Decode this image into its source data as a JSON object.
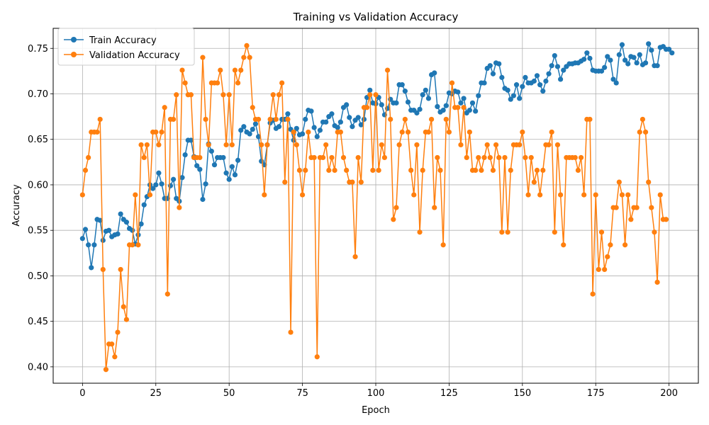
{
  "chart_data": {
    "type": "line",
    "title": "Training vs Validation Accuracy",
    "xlabel": "Epoch",
    "ylabel": "Accuracy",
    "xlim": [
      -10,
      210
    ],
    "ylim": [
      0.382,
      0.772
    ],
    "xticks": [
      0,
      25,
      50,
      75,
      100,
      125,
      150,
      175,
      200
    ],
    "yticks": [
      0.4,
      0.45,
      0.5,
      0.55,
      0.6,
      0.65,
      0.7,
      0.75
    ],
    "ytick_labels": [
      "0.40",
      "0.45",
      "0.50",
      "0.55",
      "0.60",
      "0.65",
      "0.70",
      "0.75"
    ],
    "grid": true,
    "legend_position": "top-left",
    "series": [
      {
        "name": "Train Accuracy",
        "color": "#1f77b4",
        "marker": "circle",
        "values": [
          0.541,
          0.551,
          0.534,
          0.509,
          0.534,
          0.562,
          0.561,
          0.539,
          0.549,
          0.55,
          0.543,
          0.545,
          0.546,
          0.568,
          0.562,
          0.559,
          0.552,
          0.55,
          0.535,
          0.545,
          0.557,
          0.578,
          0.587,
          0.6,
          0.596,
          0.6,
          0.613,
          0.601,
          0.585,
          0.585,
          0.599,
          0.606,
          0.585,
          0.582,
          0.608,
          0.633,
          0.649,
          0.649,
          0.631,
          0.621,
          0.617,
          0.584,
          0.601,
          0.645,
          0.637,
          0.622,
          0.63,
          0.63,
          0.63,
          0.613,
          0.606,
          0.62,
          0.611,
          0.627,
          0.66,
          0.664,
          0.658,
          0.656,
          0.661,
          0.667,
          0.653,
          0.626,
          0.622,
          0.644,
          0.668,
          0.671,
          0.662,
          0.664,
          0.672,
          0.672,
          0.678,
          0.661,
          0.649,
          0.662,
          0.655,
          0.656,
          0.672,
          0.682,
          0.681,
          0.663,
          0.653,
          0.66,
          0.669,
          0.669,
          0.675,
          0.678,
          0.665,
          0.663,
          0.669,
          0.685,
          0.688,
          0.674,
          0.664,
          0.671,
          0.674,
          0.666,
          0.672,
          0.696,
          0.704,
          0.69,
          0.689,
          0.696,
          0.688,
          0.677,
          0.684,
          0.694,
          0.69,
          0.69,
          0.71,
          0.71,
          0.703,
          0.691,
          0.682,
          0.682,
          0.679,
          0.683,
          0.699,
          0.704,
          0.695,
          0.721,
          0.723,
          0.686,
          0.68,
          0.682,
          0.687,
          0.701,
          0.7,
          0.703,
          0.702,
          0.69,
          0.695,
          0.679,
          0.682,
          0.69,
          0.681,
          0.698,
          0.712,
          0.712,
          0.728,
          0.731,
          0.722,
          0.734,
          0.733,
          0.718,
          0.706,
          0.704,
          0.694,
          0.698,
          0.71,
          0.695,
          0.708,
          0.718,
          0.712,
          0.712,
          0.714,
          0.72,
          0.71,
          0.703,
          0.714,
          0.722,
          0.731,
          0.742,
          0.73,
          0.716,
          0.726,
          0.73,
          0.733,
          0.733,
          0.734,
          0.734,
          0.736,
          0.738,
          0.745,
          0.739,
          0.726,
          0.725,
          0.725,
          0.725,
          0.729,
          0.741,
          0.737,
          0.716,
          0.712,
          0.743,
          0.754,
          0.737,
          0.733,
          0.741,
          0.74,
          0.734,
          0.743,
          0.732,
          0.734,
          0.755,
          0.748,
          0.731,
          0.731,
          0.751,
          0.752,
          0.749,
          0.749,
          0.745
        ]
      },
      {
        "name": "Validation Accuracy",
        "color": "#ff7f0e",
        "marker": "circle",
        "values": [
          0.589,
          0.616,
          0.63,
          0.658,
          0.658,
          0.658,
          0.672,
          0.507,
          0.397,
          0.425,
          0.425,
          0.411,
          0.438,
          0.507,
          0.466,
          0.452,
          0.534,
          0.534,
          0.589,
          0.534,
          0.644,
          0.63,
          0.644,
          0.589,
          0.658,
          0.658,
          0.644,
          0.658,
          0.685,
          0.48,
          0.672,
          0.672,
          0.699,
          0.575,
          0.726,
          0.712,
          0.699,
          0.699,
          0.63,
          0.63,
          0.63,
          0.74,
          0.672,
          0.644,
          0.712,
          0.712,
          0.712,
          0.726,
          0.699,
          0.644,
          0.699,
          0.644,
          0.726,
          0.712,
          0.726,
          0.74,
          0.753,
          0.74,
          0.685,
          0.672,
          0.672,
          0.644,
          0.589,
          0.644,
          0.672,
          0.699,
          0.672,
          0.699,
          0.712,
          0.603,
          0.672,
          0.438,
          0.658,
          0.644,
          0.616,
          0.589,
          0.616,
          0.658,
          0.63,
          0.63,
          0.411,
          0.63,
          0.63,
          0.644,
          0.616,
          0.63,
          0.616,
          0.658,
          0.658,
          0.63,
          0.616,
          0.603,
          0.603,
          0.521,
          0.63,
          0.603,
          0.685,
          0.685,
          0.699,
          0.616,
          0.699,
          0.616,
          0.644,
          0.63,
          0.726,
          0.672,
          0.562,
          0.575,
          0.644,
          0.658,
          0.672,
          0.658,
          0.616,
          0.589,
          0.644,
          0.548,
          0.616,
          0.658,
          0.658,
          0.672,
          0.575,
          0.63,
          0.616,
          0.534,
          0.672,
          0.658,
          0.712,
          0.685,
          0.685,
          0.644,
          0.685,
          0.63,
          0.658,
          0.616,
          0.616,
          0.63,
          0.616,
          0.63,
          0.644,
          0.63,
          0.616,
          0.644,
          0.63,
          0.548,
          0.63,
          0.548,
          0.616,
          0.644,
          0.644,
          0.644,
          0.658,
          0.63,
          0.589,
          0.63,
          0.603,
          0.616,
          0.589,
          0.616,
          0.644,
          0.644,
          0.658,
          0.548,
          0.644,
          0.589,
          0.534,
          0.63,
          0.63,
          0.63,
          0.63,
          0.616,
          0.63,
          0.589,
          0.672,
          0.672,
          0.48,
          0.589,
          0.507,
          0.548,
          0.507,
          0.521,
          0.534,
          0.575,
          0.575,
          0.603,
          0.589,
          0.534,
          0.589,
          0.562,
          0.575,
          0.575,
          0.658,
          0.672,
          0.658,
          0.603,
          0.575,
          0.548,
          0.493,
          0.589,
          0.562,
          0.562
        ]
      }
    ]
  }
}
